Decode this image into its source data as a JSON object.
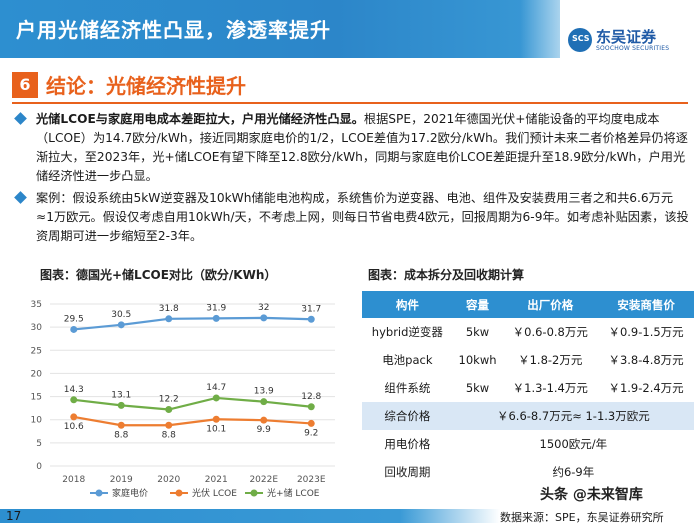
{
  "header": {
    "title": "户用光储经济性凸显，渗透率提升"
  },
  "logo": {
    "mark": "SCS",
    "name_cn": "东吴证券",
    "name_en": "SOOCHOW SECURITIES"
  },
  "section": {
    "number": "6",
    "title": "结论：光储经济性提升"
  },
  "bullets": [
    {
      "bold": "光储LCOE与家庭用电成本差距拉大，户用光储经济性凸显。",
      "text": "根据SPE，2021年德国光伏+储能设备的平均度电成本（LCOE）为14.7欧分/kWh，接近同期家庭电价的1/2，LCOE差值为17.2欧分/kWh。我们预计未来二者价格差异仍将逐渐拉大，至2023年，光+储LCOE有望下降至12.8欧分/kWh，同期与家庭电价LCOE差距提升至18.9欧分/kWh，户用光储经济性进一步凸显。"
    },
    {
      "bold": "",
      "text": "案例：假设系统由5kW逆变器及10kWh储能电池构成，系统售价为逆变器、电池、组件及安装费用三者之和共6.6万元≈1万欧元。假设仅考虑自用10kWh/天，不考虑上网，则每日节省电费4欧元，回报周期为6-9年。如考虑补贴因素，该投资周期可进一步缩短至2-3年。"
    }
  ],
  "chart_title": "图表：德国光+储LCOE对比（欧分/KWh）",
  "table_title": "图表：成本拆分及回收期计算",
  "chart_data": {
    "type": "line",
    "categories": [
      "2018",
      "2019",
      "2020",
      "2021",
      "2022E",
      "2023E"
    ],
    "ylim": [
      0,
      35
    ],
    "yticks": [
      "0",
      "5",
      "10",
      "15",
      "20",
      "25",
      "30",
      "35"
    ],
    "series": [
      {
        "name": "家庭电价",
        "color": "#5b9bd5",
        "values": [
          29.5,
          30.5,
          31.8,
          31.9,
          32,
          31.7
        ],
        "labels": [
          "29.5",
          "30.5",
          "31.8",
          "31.9",
          "32",
          "31.7"
        ]
      },
      {
        "name": "光伏 LCOE",
        "color": "#ed7d31",
        "values": [
          10.6,
          8.8,
          8.8,
          10.1,
          9.9,
          9.2
        ],
        "labels": [
          "10.6",
          "8.8",
          "8.8",
          "10.1",
          "9.9",
          "9.2"
        ]
      },
      {
        "name": "光+储 LCOE",
        "color": "#70ad47",
        "values": [
          14.3,
          13.1,
          12.2,
          14.7,
          13.9,
          12.8
        ],
        "labels": [
          "14.3",
          "13.1",
          "12.2",
          "14.7",
          "13.9",
          "12.8"
        ]
      }
    ],
    "legend": "bottom"
  },
  "table": {
    "headers": [
      "构件",
      "容量",
      "出厂价格",
      "安装商售价"
    ],
    "rows": [
      [
        "hybrid逆变器",
        "5kw",
        "￥0.6-0.8万元",
        "￥0.9-1.5万元"
      ],
      [
        "电池pack",
        "10kwh",
        "￥1.8-2万元",
        "￥3.8-4.8万元"
      ],
      [
        "组件系统",
        "5kw",
        "￥1.3-1.4万元",
        "￥1.9-2.4万元"
      ]
    ],
    "merged": [
      [
        "综合价格",
        "￥6.6-8.7万元≈ 1-1.3万欧元"
      ],
      [
        "用电价格",
        "1500欧元/年"
      ],
      [
        "回收周期",
        "约6-9年"
      ]
    ]
  },
  "footer": {
    "page": "17",
    "source": "数据来源：SPE，东吴证券研究所"
  },
  "watermark": "头条 @未来智库"
}
